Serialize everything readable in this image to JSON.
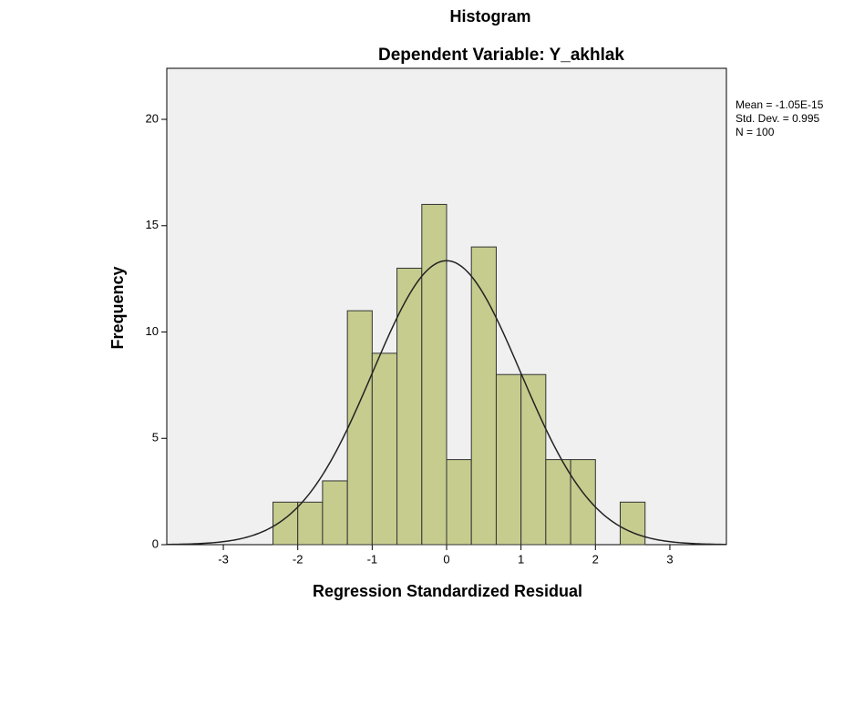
{
  "chart_data": {
    "type": "histogram",
    "title": "Histogram",
    "subtitle": "Dependent Variable: Y_akhlak",
    "x_label": "Regression Standardized Residual",
    "y_label": "Frequency",
    "bins": [
      -2.333,
      -2,
      -1.667,
      -1.333,
      -1,
      -0.667,
      -0.333,
      0,
      0.333,
      0.667,
      1,
      1.333,
      1.667,
      2,
      2.333,
      2.667
    ],
    "values": [
      2,
      2,
      3,
      11,
      9,
      13,
      16,
      4,
      14,
      8,
      8,
      4,
      4,
      0,
      2
    ],
    "color": "#c6cc8e",
    "xlim": [
      -3.76,
      3.76
    ],
    "xticks": [
      -3,
      -2,
      -1,
      0,
      1,
      2,
      3
    ],
    "ylim": [
      0,
      22.4
    ],
    "yticks": [
      0,
      5,
      10,
      15,
      20
    ],
    "normal_curve": {
      "mean": {
        "value": -1.05e-15,
        "label": "Mean = -1.05E-15"
      },
      "sd": {
        "value": 0.995,
        "label": "Std. Dev. = 0.995"
      },
      "n": {
        "value": 100,
        "label": "N = 100"
      }
    }
  }
}
